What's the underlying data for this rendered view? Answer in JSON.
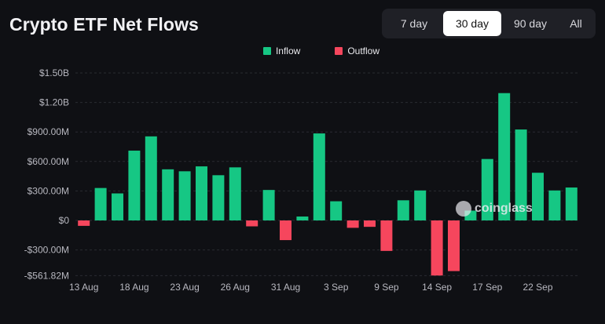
{
  "header": {
    "title": "Crypto ETF Net Flows",
    "range_tabs": [
      {
        "label": "7 day",
        "active": false
      },
      {
        "label": "30 day",
        "active": true
      },
      {
        "label": "90 day",
        "active": false
      },
      {
        "label": "All",
        "active": false
      }
    ]
  },
  "watermark": "coinglass",
  "colors": {
    "inflow": "#16c784",
    "outflow": "#f6465d",
    "grid": "#2a2b31",
    "text": "#b8b8c0"
  },
  "chart_data": {
    "type": "bar",
    "legend": [
      {
        "name": "Inflow",
        "color": "#16c784"
      },
      {
        "name": "Outflow",
        "color": "#f6465d"
      }
    ],
    "legend_position": "top-center",
    "grid": true,
    "y_ticks": [
      {
        "label": "$1.50B",
        "value": 1500
      },
      {
        "label": "$1.20B",
        "value": 1200
      },
      {
        "label": "$900.00M",
        "value": 900
      },
      {
        "label": "$600.00M",
        "value": 600
      },
      {
        "label": "$300.00M",
        "value": 300
      },
      {
        "label": "$0",
        "value": 0
      },
      {
        "label": "-$300.00M",
        "value": -300
      },
      {
        "label": "-$561.82M",
        "value": -561.82
      }
    ],
    "ylim": [
      -561.82,
      1500
    ],
    "y_unit": "millions USD",
    "x_ticks": [
      {
        "label": "13 Aug",
        "index": 0
      },
      {
        "label": "18 Aug",
        "index": 3
      },
      {
        "label": "23 Aug",
        "index": 6
      },
      {
        "label": "26 Aug",
        "index": 9
      },
      {
        "label": "31 Aug",
        "index": 12
      },
      {
        "label": "3 Sep",
        "index": 15
      },
      {
        "label": "9 Sep",
        "index": 18
      },
      {
        "label": "14 Sep",
        "index": 21
      },
      {
        "label": "17 Sep",
        "index": 24
      },
      {
        "label": "22 Sep",
        "index": 27
      }
    ],
    "values": [
      -55,
      330,
      275,
      710,
      855,
      520,
      500,
      550,
      460,
      540,
      -60,
      310,
      -200,
      40,
      885,
      195,
      -75,
      -65,
      -310,
      205,
      305,
      -560,
      -515,
      100,
      625,
      1295,
      925,
      485,
      305,
      335
    ]
  }
}
